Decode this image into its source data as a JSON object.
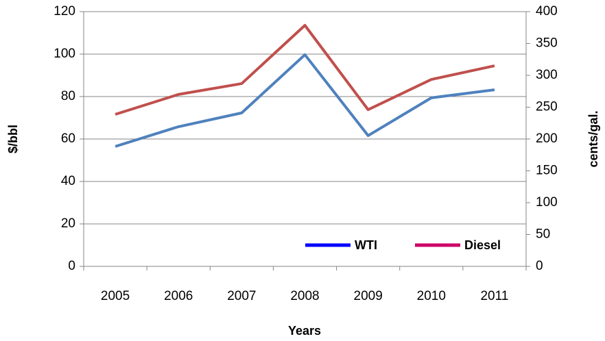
{
  "chart_data": {
    "type": "line",
    "x_label": "Years",
    "y_label": "$/bbl",
    "y2_label": "cents/gal.",
    "categories": [
      "2005",
      "2006",
      "2007",
      "2008",
      "2009",
      "2010",
      "2011"
    ],
    "series": [
      {
        "name": "WTI",
        "color": "#4f81bd",
        "legend_color": "#0000ff",
        "values": [
          56.5,
          65.8,
          72.3,
          99.7,
          61.6,
          79.4,
          83.2
        ]
      },
      {
        "name": "Diesel",
        "color": "#c0504d",
        "legend_color": "#cc0066",
        "axis": "y2",
        "values": [
          238.7,
          270,
          287,
          378.5,
          246,
          293.5,
          315
        ]
      }
    ],
    "ylim": [
      0,
      120
    ],
    "yticks": [
      0,
      20,
      40,
      60,
      80,
      100,
      120
    ],
    "y2lim": [
      0,
      400
    ],
    "y2ticks": [
      0,
      50,
      100,
      150,
      200,
      250,
      300,
      350,
      400
    ],
    "grid": true
  }
}
